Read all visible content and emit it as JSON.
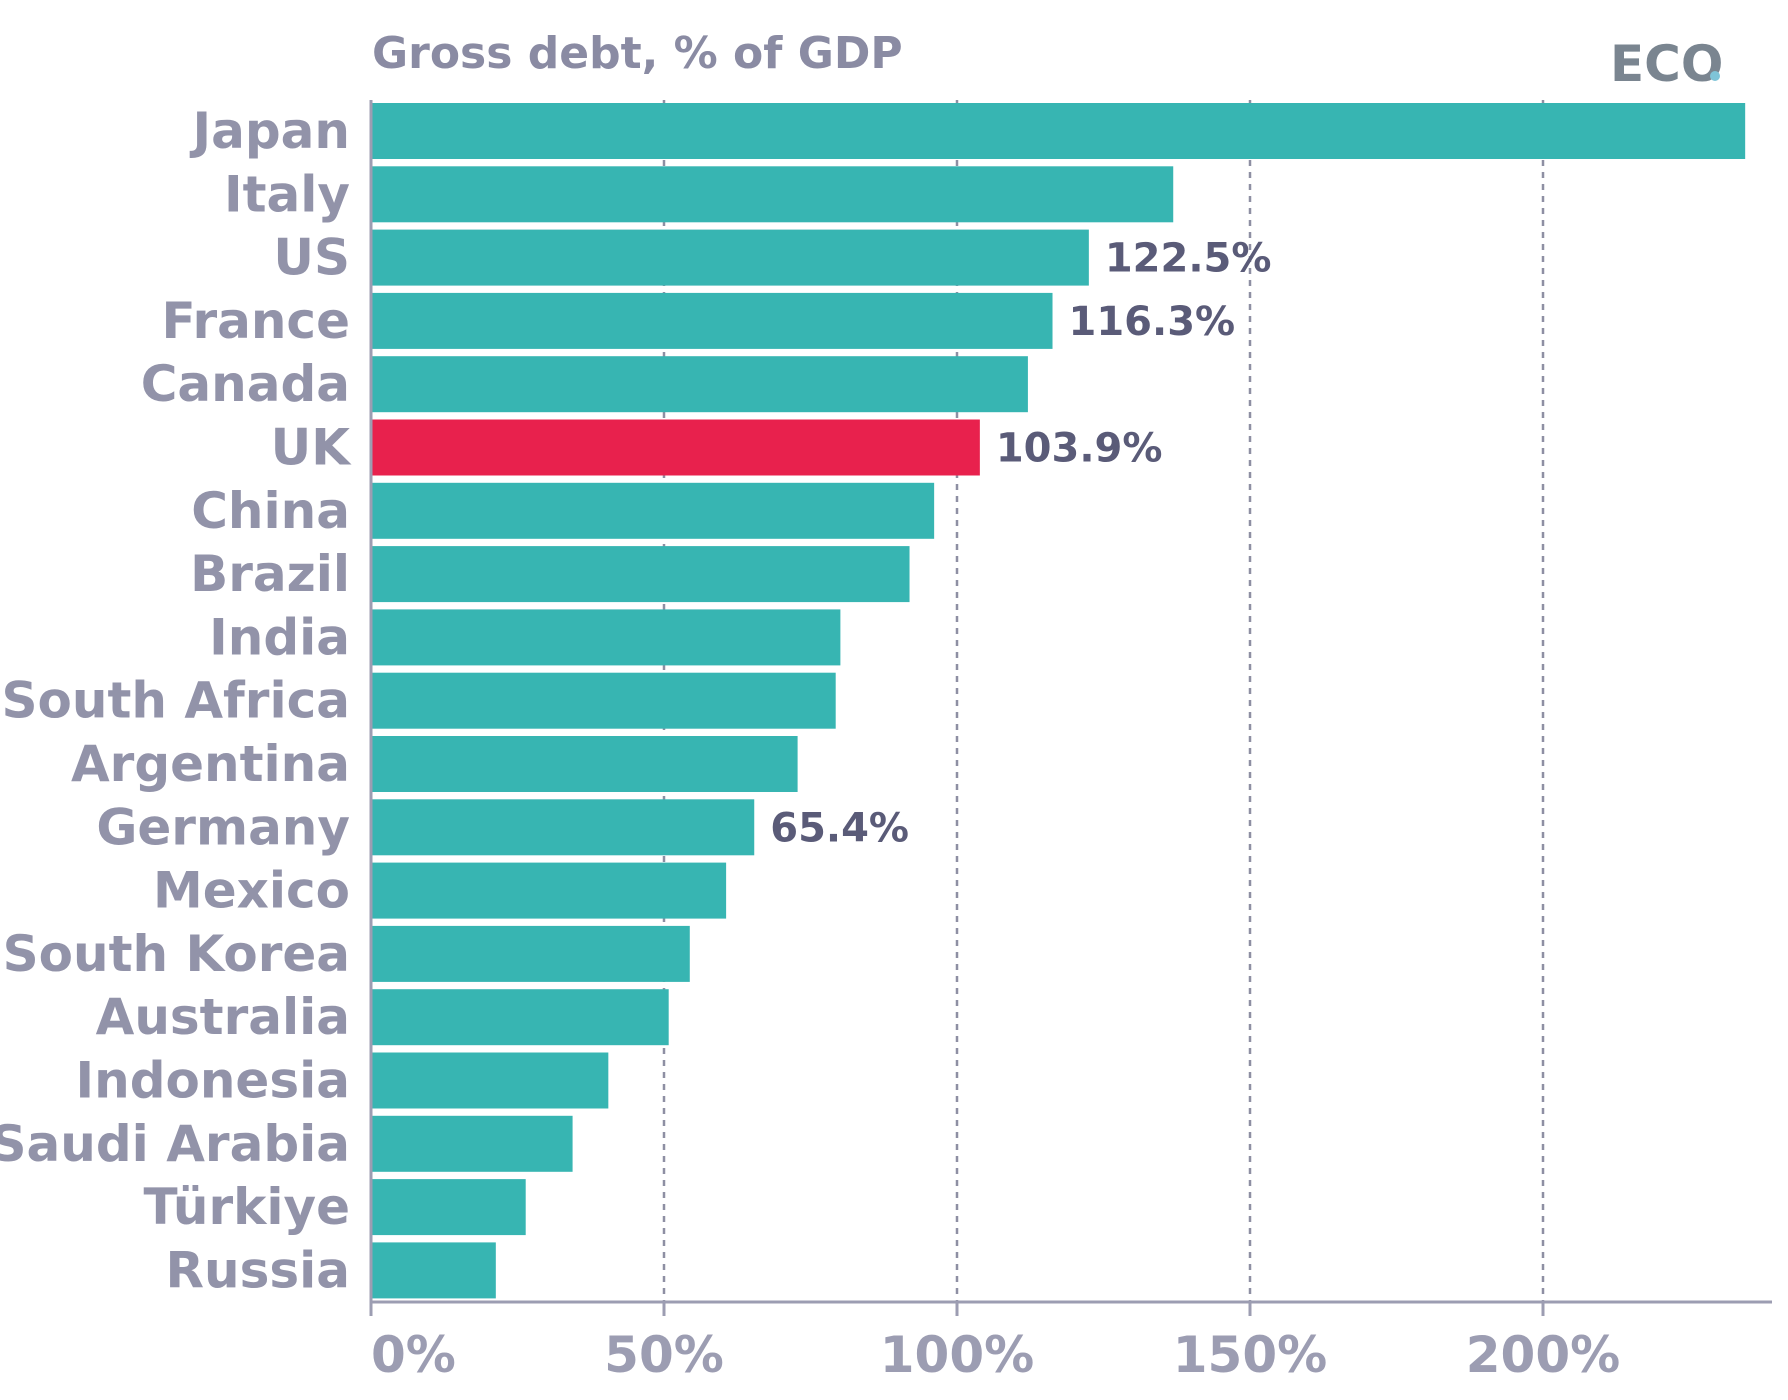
{
  "chart_data": {
    "type": "bar",
    "orientation": "horizontal",
    "title": "Gross debt, % of GDP",
    "categories": [
      "Japan",
      "Italy",
      "US",
      "France",
      "Canada",
      "UK",
      "China",
      "Brazil",
      "India",
      "South Africa",
      "Argentina",
      "Germany",
      "Mexico",
      "South Korea",
      "Australia",
      "Indonesia",
      "Saudi Arabia",
      "Türkiye",
      "Russia"
    ],
    "values": [
      234.5,
      136.9,
      122.5,
      116.3,
      112.1,
      103.9,
      96.1,
      91.9,
      80.1,
      79.3,
      72.8,
      65.4,
      60.6,
      54.4,
      50.8,
      40.5,
      34.4,
      26.4,
      21.3
    ],
    "data_labels": [
      {
        "category": "US",
        "text": "122.5%"
      },
      {
        "category": "France",
        "text": "116.3%"
      },
      {
        "category": "UK",
        "text": "103.9%"
      },
      {
        "category": "Germany",
        "text": "65.4%"
      }
    ],
    "highlight": {
      "category": "UK",
      "color": "#e8214d"
    },
    "bar_color": "#37b5b2",
    "xlim": [
      0,
      240
    ],
    "xticks": [
      0,
      50,
      100,
      150,
      200
    ],
    "xtick_labels": [
      "0%",
      "50%",
      "100%",
      "150%",
      "200%"
    ],
    "grid": "vertical dashed",
    "xlabel": "",
    "ylabel": ""
  },
  "brand": {
    "logo_text": "ECO",
    "logo_dot_color": "#7fc4d8"
  }
}
